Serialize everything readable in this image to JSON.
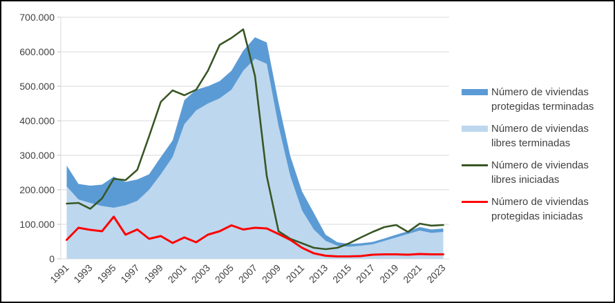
{
  "chart_data": {
    "type": "area",
    "title": "",
    "xlabel": "",
    "ylabel": "",
    "ylim": [
      0,
      700000
    ],
    "grid": true,
    "legend_position": "right",
    "x": [
      1991,
      1992,
      1993,
      1994,
      1995,
      1996,
      1997,
      1998,
      1999,
      2000,
      2001,
      2002,
      2003,
      2004,
      2005,
      2006,
      2007,
      2008,
      2009,
      2010,
      2011,
      2012,
      2013,
      2014,
      2015,
      2016,
      2017,
      2018,
      2019,
      2020,
      2021,
      2022,
      2023
    ],
    "x_tick_labels": [
      "1991",
      "1993",
      "1995",
      "1997",
      "1999",
      "2001",
      "2003",
      "2005",
      "2007",
      "2009",
      "2011",
      "2013",
      "2015",
      "2017",
      "2019",
      "2021",
      "2023"
    ],
    "y_tick_labels": [
      "0",
      "100.000",
      "200.000",
      "300.000",
      "400.000",
      "500.000",
      "600.000",
      "700.000"
    ],
    "y_tick_values": [
      0,
      100000,
      200000,
      300000,
      400000,
      500000,
      600000,
      700000
    ],
    "series": [
      {
        "name": "Número de viviendas libres terminadas",
        "type": "area",
        "stack": "terminadas",
        "color": "#BDD7EE",
        "values": [
          210000,
          172000,
          162000,
          153000,
          148000,
          155000,
          168000,
          200000,
          245000,
          295000,
          390000,
          430000,
          450000,
          465000,
          490000,
          545000,
          580000,
          565000,
          385000,
          240000,
          140000,
          85000,
          52000,
          38000,
          35000,
          38000,
          42000,
          52000,
          62000,
          72000,
          82000,
          75000,
          78000
        ]
      },
      {
        "name": "Número de viviendas protegidas terminadas",
        "type": "area",
        "stack": "terminadas",
        "color": "#5B9BD5",
        "values": [
          60000,
          45000,
          50000,
          62000,
          90000,
          68000,
          62000,
          45000,
          50000,
          48000,
          70000,
          60000,
          50000,
          50000,
          55000,
          58000,
          62000,
          62000,
          68000,
          58000,
          55000,
          48000,
          18000,
          10000,
          8000,
          7000,
          7000,
          7000,
          8000,
          8000,
          10000,
          10000,
          10000
        ]
      },
      {
        "name": "Número de viviendas libres iniciadas",
        "type": "line",
        "color": "#375623",
        "values": [
          160000,
          162000,
          145000,
          175000,
          232000,
          228000,
          258000,
          355000,
          455000,
          488000,
          474000,
          490000,
          545000,
          620000,
          640000,
          665000,
          530000,
          240000,
          80000,
          58000,
          45000,
          32000,
          28000,
          32000,
          45000,
          62000,
          78000,
          92000,
          98000,
          78000,
          102000,
          96000,
          98000
        ]
      },
      {
        "name": "Número de viviendas protegidas iniciadas",
        "type": "line",
        "color": "#FF0000",
        "values": [
          55000,
          90000,
          84000,
          80000,
          122000,
          70000,
          85000,
          58000,
          66000,
          46000,
          62000,
          48000,
          70000,
          80000,
          97000,
          85000,
          90000,
          88000,
          72000,
          55000,
          32000,
          16000,
          9000,
          7000,
          7000,
          8000,
          12000,
          13000,
          13000,
          12000,
          14000,
          13000,
          13000
        ]
      }
    ],
    "legend": [
      {
        "swatch": "area",
        "color": "#5B9BD5",
        "lines": [
          "Número de viviendas",
          "protegidas terminadas"
        ]
      },
      {
        "swatch": "area",
        "color": "#BDD7EE",
        "lines": [
          "Número de viviendas",
          "libres terminadas"
        ]
      },
      {
        "swatch": "line",
        "color": "#375623",
        "lines": [
          "Número de viviendas",
          "libres iniciadas"
        ]
      },
      {
        "swatch": "line",
        "color": "#FF0000",
        "lines": [
          "Número de viviendas",
          "protegidas iniciadas"
        ]
      }
    ],
    "colors": {
      "gridline": "#D9D9D9",
      "axis_tick": "#BFBFBF",
      "axis_text": "#404040",
      "frame_border": "#000000",
      "background": "#FFFFFF"
    }
  }
}
